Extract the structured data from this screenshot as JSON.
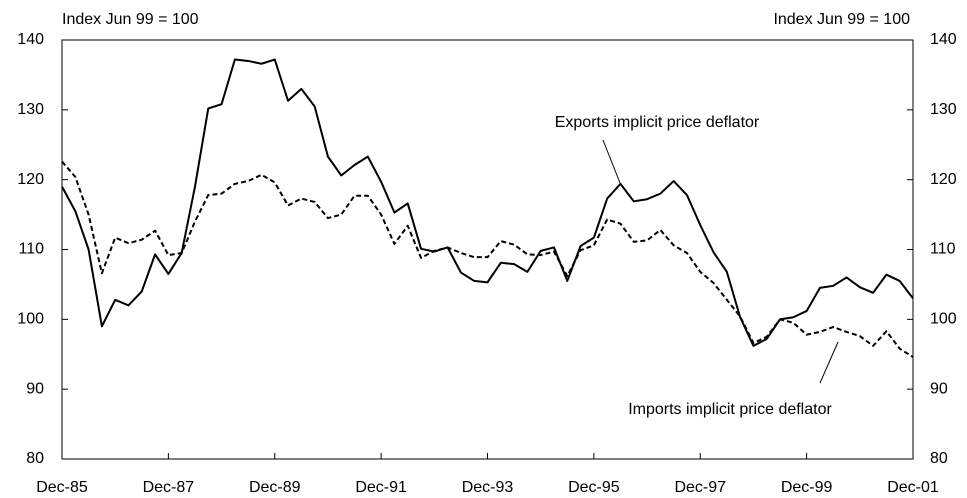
{
  "chart_data": {
    "type": "line",
    "y_label": "Index Jun 99 = 100",
    "y2_label": "Index Jun 99 = 100",
    "categories": [
      "Dec-85",
      null,
      null,
      null,
      null,
      null,
      null,
      null,
      "Dec-87",
      null,
      null,
      null,
      null,
      null,
      null,
      null,
      "Dec-89",
      null,
      null,
      null,
      null,
      null,
      null,
      null,
      "Dec-91",
      null,
      null,
      null,
      null,
      null,
      null,
      null,
      "Dec-93",
      null,
      null,
      null,
      null,
      null,
      null,
      null,
      "Dec-95",
      null,
      null,
      null,
      null,
      null,
      null,
      null,
      "Dec-97",
      null,
      null,
      null,
      null,
      null,
      null,
      null,
      "Dec-99",
      null,
      null,
      null,
      null,
      null,
      null,
      null,
      "Dec-01"
    ],
    "series": [
      {
        "name": "Exports implicit price deflator",
        "color": "#000000",
        "style": "solid",
        "values": [
          119,
          115.5,
          110,
          99,
          102.8,
          102,
          104,
          109.3,
          106.5,
          109.5,
          119,
          130.2,
          130.8,
          137.2,
          137,
          136.6,
          137.2,
          131.3,
          133,
          130.5,
          123.3,
          120.6,
          122.1,
          123.3,
          119.7,
          115.3,
          116.6,
          110.1,
          109.7,
          110.3,
          106.7,
          105.5,
          105.3,
          108.1,
          107.9,
          106.8,
          109.8,
          110.3,
          105.5,
          110.5,
          111.7,
          117.3,
          119.4,
          116.9,
          117.2,
          118,
          119.8,
          117.8,
          113.5,
          109.6,
          106.8,
          100.3,
          96.2,
          97.2,
          100,
          100.3,
          101.2,
          104.5,
          104.8,
          106,
          104.6,
          103.8,
          106.4,
          105.5,
          103
        ]
      },
      {
        "name": "Imports implicit price deflator",
        "color": "#000000",
        "style": "dashed",
        "values": [
          122.6,
          120.4,
          115,
          106.6,
          111.7,
          110.9,
          111.4,
          112.7,
          109.2,
          109.5,
          114,
          117.8,
          118,
          119.4,
          119.8,
          120.7,
          119.6,
          116.3,
          117.3,
          116.8,
          114.5,
          115,
          117.7,
          117.7,
          115,
          110.8,
          113.4,
          108.8,
          109.8,
          110.3,
          109.5,
          108.9,
          108.9,
          111.2,
          110.7,
          109.3,
          109.2,
          109.7,
          106.2,
          109.9,
          110.6,
          114.3,
          113.7,
          111.1,
          111.3,
          112.8,
          110.6,
          109.5,
          106.8,
          105.2,
          102.8,
          100.4,
          96.6,
          97.5,
          100,
          99.5,
          97.8,
          98.2,
          98.9,
          98.2,
          97.6,
          96.2,
          98.3,
          95.8,
          94.6
        ]
      }
    ],
    "ylim": [
      80,
      140
    ],
    "yticks": [
      80,
      90,
      100,
      110,
      120,
      130,
      140
    ],
    "y2lim": [
      80,
      140
    ],
    "y2ticks": [
      80,
      90,
      100,
      110,
      120,
      130,
      140
    ],
    "grid": false
  }
}
